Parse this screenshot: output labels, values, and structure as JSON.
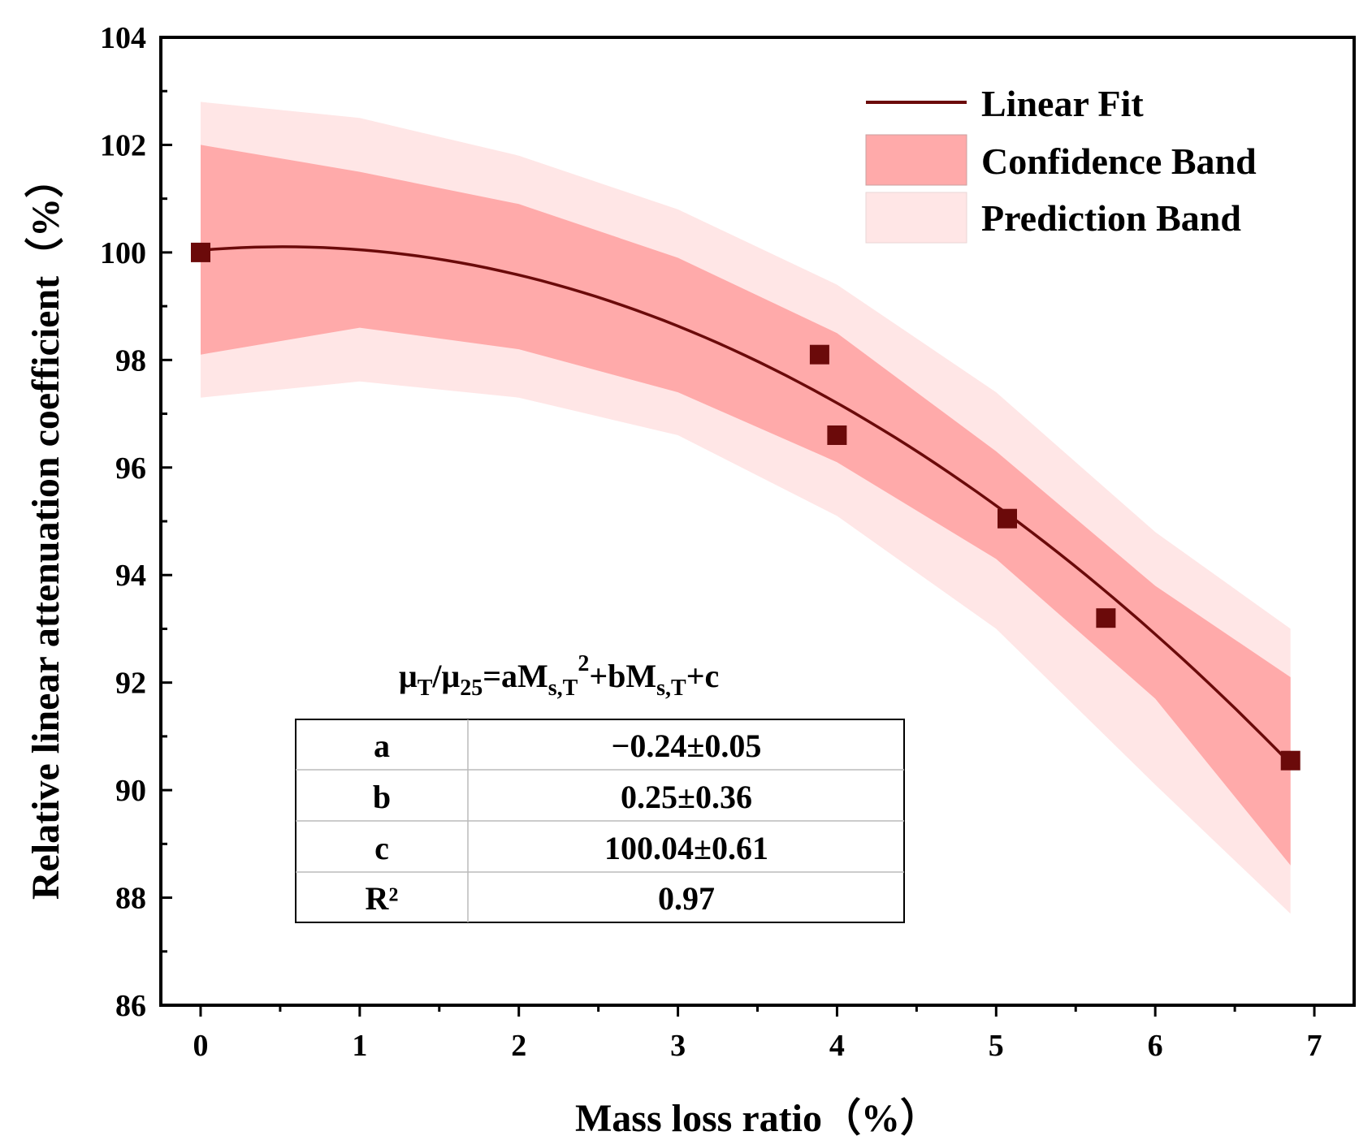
{
  "chart_data": {
    "type": "scatter",
    "xlabel": "Mass loss ratio（%）",
    "ylabel": "Relative linear attenuation coefficient（%）",
    "xlim": [
      -0.25,
      7.25
    ],
    "ylim": [
      86,
      104
    ],
    "xticks": [
      "0",
      "1",
      "2",
      "3",
      "4",
      "5",
      "6",
      "7"
    ],
    "yticks": [
      "86",
      "88",
      "90",
      "92",
      "94",
      "96",
      "98",
      "100",
      "102",
      "104"
    ],
    "grid": false,
    "legend_position": "top-right",
    "legend": [
      {
        "label": "Linear Fit",
        "kind": "line",
        "color": "#6b0a0a"
      },
      {
        "label": "Confidence Band",
        "kind": "band",
        "color": "#ffaaaa"
      },
      {
        "label": "Prediction Band",
        "kind": "band",
        "color": "#ffe6e6"
      }
    ],
    "series": [
      {
        "kind": "points",
        "color": "#6b0a0a",
        "x": [
          0,
          3.89,
          4.0,
          5.07,
          5.69,
          6.85
        ],
        "y": [
          100.0,
          98.1,
          96.6,
          95.05,
          93.2,
          90.55
        ]
      }
    ],
    "fit": {
      "a": -0.24,
      "b": 0.25,
      "c": 100.04,
      "x_range": [
        0,
        6.85
      ],
      "color": "#6b0a0a"
    },
    "confidence_band": {
      "color": "#ffaaaa",
      "x": [
        0,
        1,
        2,
        3,
        4,
        5,
        6,
        6.85
      ],
      "upper": [
        102.0,
        101.5,
        100.9,
        99.9,
        98.5,
        96.3,
        93.8,
        92.1
      ],
      "lower": [
        98.1,
        98.6,
        98.2,
        97.4,
        96.1,
        94.3,
        91.7,
        88.6
      ]
    },
    "prediction_band": {
      "color": "#ffe6e6",
      "x": [
        0,
        1,
        2,
        3,
        4,
        5,
        6,
        6.85
      ],
      "upper": [
        102.8,
        102.5,
        101.8,
        100.8,
        99.4,
        97.4,
        94.8,
        93.0
      ],
      "lower": [
        97.3,
        97.6,
        97.3,
        96.6,
        95.1,
        93.0,
        90.1,
        87.7
      ]
    },
    "annotation": {
      "equation": {
        "mu": "μ",
        "sub_T": "T",
        "slash": "/",
        "sub_25": "25",
        "eq_a": "=aM",
        "sub_sT": "s,T",
        "sup_2": "2",
        "plus_b": "+bM",
        "plus_c": "+c"
      },
      "table": [
        [
          "a",
          "−0.24±0.05"
        ],
        [
          "b",
          "0.25±0.36"
        ],
        [
          "c",
          "100.04±0.61"
        ],
        [
          "R²",
          "0.97"
        ]
      ]
    }
  }
}
